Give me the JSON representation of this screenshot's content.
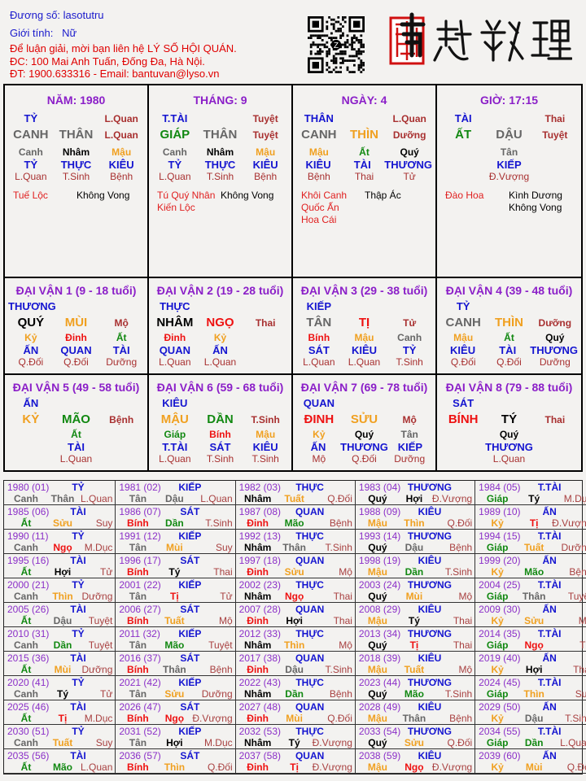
{
  "header": {
    "duong_so": "Đương số: lasotutru",
    "gioi_tinh": "Giới tính:   Nữ",
    "contact1": "Để luận giải, mời bạn liên hệ LÝ SỐ HỘI QUÁN.",
    "contact2": "ĐC: 100 Mai Anh Tuấn, Đống Đa, Hà Nội.",
    "contact3": "ĐT: 1900.633316 - Email: bantuvan@lyso.vn",
    "logo_text": "南越數理",
    "qr_icon": "qr-code"
  },
  "colors": {
    "Canh": "#666666",
    "Tân": "#666666",
    "Thân": "#666666",
    "Dậu": "#666666",
    "Giáp": "#118811",
    "Ất": "#118811",
    "Dần": "#118811",
    "Mão": "#118811",
    "Bính": "#ee1111",
    "Đinh": "#ee1111",
    "Tị": "#ee1111",
    "Ngọ": "#ee1111",
    "Mậu": "#f0a020",
    "Kỷ": "#f0a020",
    "Thìn": "#f0a020",
    "Tuất": "#f0a020",
    "Sửu": "#f0a020",
    "Mùi": "#f0a020",
    "Nhâm": "#000000",
    "Quý": "#000000",
    "Tý": "#000000",
    "Hợi": "#000000",
    "title": "#8b1fc8",
    "thap_than": "#1515d0",
    "truong_sinh": "#a83030",
    "than_sat": "#e02020"
  },
  "pillars": [
    {
      "title": "NĂM: 1980",
      "tt": "TỶ",
      "ts1": "L.Quan",
      "can": "CANH",
      "can_el": "Canh",
      "chi": "THÂN",
      "chi_el": "Thân",
      "ts2": "L.Quan",
      "hidden": [
        {
          "can": "Canh",
          "tt": "TỶ",
          "ts": "L.Quan"
        },
        {
          "can": "Nhâm",
          "tt": "THỰC",
          "ts": "T.Sinh"
        },
        {
          "can": "Mậu",
          "tt": "KIÊU",
          "ts": "Bệnh"
        }
      ],
      "stars_left": [
        "Tuế Lộc"
      ],
      "stars_right": [
        "Không Vong"
      ]
    },
    {
      "title": "THÁNG: 9",
      "tt": "T.TÀI",
      "ts1": "Tuyệt",
      "can": "GIÁP",
      "can_el": "Giáp",
      "chi": "THÂN",
      "chi_el": "Thân",
      "ts2": "Tuyệt",
      "hidden": [
        {
          "can": "Canh",
          "tt": "TỶ",
          "ts": "L.Quan"
        },
        {
          "can": "Nhâm",
          "tt": "THỰC",
          "ts": "T.Sinh"
        },
        {
          "can": "Mậu",
          "tt": "KIÊU",
          "ts": "Bệnh"
        }
      ],
      "stars_left": [
        "Tú Quý Nhân",
        "Kiến Lộc"
      ],
      "stars_right": [
        "Không Vong"
      ]
    },
    {
      "title": "NGÀY: 4",
      "tt": "THÂN",
      "ts1": "L.Quan",
      "can": "CANH",
      "can_el": "Canh",
      "chi": "THÌN",
      "chi_el": "Thìn",
      "ts2": "Dưỡng",
      "hidden": [
        {
          "can": "Mậu",
          "tt": "KIÊU",
          "ts": "Bệnh"
        },
        {
          "can": "Ất",
          "tt": "TÀI",
          "ts": "Thai"
        },
        {
          "can": "Quý",
          "tt": "THƯƠNG",
          "ts": "Tử"
        }
      ],
      "stars_left": [
        "Khôi Canh",
        "Quốc Ấn",
        "Hoa Cái"
      ],
      "stars_right": [
        "Thập Ác"
      ]
    },
    {
      "title": "GIỜ: 17:15",
      "tt": "TÀI",
      "ts1": "Thai",
      "can": "ẤT",
      "can_el": "Ất",
      "chi": "DẬU",
      "chi_el": "Dậu",
      "ts2": "Tuyệt",
      "hidden": [
        null,
        {
          "can": "Tân",
          "tt": "KIẾP",
          "ts": "Đ.Vượng"
        },
        null
      ],
      "stars_left": [
        "Đào Hoa"
      ],
      "stars_right": [
        "Kình Dương",
        "Không Vong"
      ]
    }
  ],
  "dai_van": [
    {
      "title": "ĐẠI VẬN 1 (9 - 18 tuổi)",
      "tt": "THƯƠNG",
      "can": "QUÝ",
      "can_el": "Quý",
      "chi": "MÙI",
      "chi_el": "Mùi",
      "ts": "Mộ",
      "hidden": [
        {
          "can": "Kỷ",
          "tt": "ẤN",
          "ts": "Q.Đối"
        },
        {
          "can": "Đinh",
          "tt": "QUAN",
          "ts": "Q.Đối"
        },
        {
          "can": "Ất",
          "tt": "TÀI",
          "ts": "Dưỡng"
        }
      ]
    },
    {
      "title": "ĐẠI VẬN 2 (19 - 28 tuổi)",
      "tt": "THỰC",
      "can": "NHÂM",
      "can_el": "Nhâm",
      "chi": "NGỌ",
      "chi_el": "Ngọ",
      "ts": "Thai",
      "hidden": [
        {
          "can": "Đinh",
          "tt": "QUAN",
          "ts": "L.Quan"
        },
        {
          "can": "Kỷ",
          "tt": "ẤN",
          "ts": "L.Quan"
        },
        null
      ]
    },
    {
      "title": "ĐẠI VẬN 3 (29 - 38 tuổi)",
      "tt": "KIẾP",
      "can": "TÂN",
      "can_el": "Tân",
      "chi": "TỊ",
      "chi_el": "Tị",
      "ts": "Tử",
      "hidden": [
        {
          "can": "Bính",
          "tt": "SÁT",
          "ts": "L.Quan"
        },
        {
          "can": "Mậu",
          "tt": "KIÊU",
          "ts": "L.Quan"
        },
        {
          "can": "Canh",
          "tt": "TỶ",
          "ts": "T.Sinh"
        }
      ]
    },
    {
      "title": "ĐẠI VẬN 4 (39 - 48 tuổi)",
      "tt": "TỶ",
      "can": "CANH",
      "can_el": "Canh",
      "chi": "THÌN",
      "chi_el": "Thìn",
      "ts": "Dưỡng",
      "hidden": [
        {
          "can": "Mậu",
          "tt": "KIÊU",
          "ts": "Q.Đối"
        },
        {
          "can": "Ất",
          "tt": "TÀI",
          "ts": "Q.Đối"
        },
        {
          "can": "Quý",
          "tt": "THƯƠNG",
          "ts": "Dưỡng"
        }
      ]
    },
    {
      "title": "ĐẠI VẬN 5 (49 - 58 tuổi)",
      "tt": "ẤN",
      "can": "KỶ",
      "can_el": "Kỷ",
      "chi": "MÃO",
      "chi_el": "Mão",
      "ts": "Bệnh",
      "hidden": [
        null,
        {
          "can": "Ất",
          "tt": "TÀI",
          "ts": "L.Quan"
        },
        null
      ]
    },
    {
      "title": "ĐẠI VẬN 6 (59 - 68 tuổi)",
      "tt": "KIÊU",
      "can": "MẬU",
      "can_el": "Mậu",
      "chi": "DẦN",
      "chi_el": "Dần",
      "ts": "T.Sinh",
      "hidden": [
        {
          "can": "Giáp",
          "tt": "T.TÀI",
          "ts": "L.Quan"
        },
        {
          "can": "Bính",
          "tt": "SÁT",
          "ts": "T.Sinh"
        },
        {
          "can": "Mậu",
          "tt": "KIÊU",
          "ts": "T.Sinh"
        }
      ]
    },
    {
      "title": "ĐẠI VẬN 7 (69 - 78 tuổi)",
      "tt": "QUAN",
      "can": "ĐINH",
      "can_el": "Đinh",
      "chi": "SỬU",
      "chi_el": "Sửu",
      "ts": "Mộ",
      "hidden": [
        {
          "can": "Kỷ",
          "tt": "ẤN",
          "ts": "Mộ"
        },
        {
          "can": "Quý",
          "tt": "THƯƠNG",
          "ts": "Q.Đối"
        },
        {
          "can": "Tân",
          "tt": "KIẾP",
          "ts": "Dưỡng"
        }
      ]
    },
    {
      "title": "ĐẠI VẬN 8 (79 - 88 tuổi)",
      "tt": "SÁT",
      "can": "BÍNH",
      "can_el": "Bính",
      "chi": "TÝ",
      "chi_el": "Tý",
      "ts": "Thai",
      "hidden": [
        null,
        {
          "can": "Quý",
          "tt": "THƯƠNG",
          "ts": "L.Quan"
        },
        null
      ]
    }
  ],
  "years": [
    [
      "1980 (01)",
      "TỶ",
      "Canh",
      "Thân",
      "L.Quan"
    ],
    [
      "1981 (02)",
      "KIẾP",
      "Tân",
      "Dậu",
      "L.Quan"
    ],
    [
      "1982 (03)",
      "THỰC",
      "Nhâm",
      "Tuất",
      "Q.Đối"
    ],
    [
      "1983 (04)",
      "THƯƠNG",
      "Quý",
      "Hợi",
      "Đ.Vượng"
    ],
    [
      "1984 (05)",
      "T.TÀI",
      "Giáp",
      "Tý",
      "M.Dục"
    ],
    [
      "1985 (06)",
      "TÀI",
      "Ất",
      "Sửu",
      "Suy"
    ],
    [
      "1986 (07)",
      "SÁT",
      "Bính",
      "Dần",
      "T.Sinh"
    ],
    [
      "1987 (08)",
      "QUAN",
      "Đinh",
      "Mão",
      "Bệnh"
    ],
    [
      "1988 (09)",
      "KIÊU",
      "Mậu",
      "Thìn",
      "Q.Đối"
    ],
    [
      "1989 (10)",
      "ẤN",
      "Kỷ",
      "Tị",
      "Đ.Vượng"
    ],
    [
      "1990 (11)",
      "TỶ",
      "Canh",
      "Ngọ",
      "M.Dục"
    ],
    [
      "1991 (12)",
      "KIẾP",
      "Tân",
      "Mùi",
      "Suy"
    ],
    [
      "1992 (13)",
      "THỰC",
      "Nhâm",
      "Thân",
      "T.Sinh"
    ],
    [
      "1993 (14)",
      "THƯƠNG",
      "Quý",
      "Dậu",
      "Bệnh"
    ],
    [
      "1994 (15)",
      "T.TÀI",
      "Giáp",
      "Tuất",
      "Dưỡng"
    ],
    [
      "1995 (16)",
      "TÀI",
      "Ất",
      "Hợi",
      "Tử"
    ],
    [
      "1996 (17)",
      "SÁT",
      "Bính",
      "Tý",
      "Thai"
    ],
    [
      "1997 (18)",
      "QUAN",
      "Đinh",
      "Sửu",
      "Mộ"
    ],
    [
      "1998 (19)",
      "KIÊU",
      "Mậu",
      "Dần",
      "T.Sinh"
    ],
    [
      "1999 (20)",
      "ẤN",
      "Kỷ",
      "Mão",
      "Bệnh"
    ],
    [
      "2000 (21)",
      "TỶ",
      "Canh",
      "Thìn",
      "Dưỡng"
    ],
    [
      "2001 (22)",
      "KIẾP",
      "Tân",
      "Tị",
      "Tử"
    ],
    [
      "2002 (23)",
      "THỰC",
      "Nhâm",
      "Ngọ",
      "Thai"
    ],
    [
      "2003 (24)",
      "THƯƠNG",
      "Quý",
      "Mùi",
      "Mộ"
    ],
    [
      "2004 (25)",
      "T.TÀI",
      "Giáp",
      "Thân",
      "Tuyệt"
    ],
    [
      "2005 (26)",
      "TÀI",
      "Ất",
      "Dậu",
      "Tuyệt"
    ],
    [
      "2006 (27)",
      "SÁT",
      "Bính",
      "Tuất",
      "Mộ"
    ],
    [
      "2007 (28)",
      "QUAN",
      "Đinh",
      "Hợi",
      "Thai"
    ],
    [
      "2008 (29)",
      "KIÊU",
      "Mậu",
      "Tý",
      "Thai"
    ],
    [
      "2009 (30)",
      "ẤN",
      "Kỷ",
      "Sửu",
      "Mộ"
    ],
    [
      "2010 (31)",
      "TỶ",
      "Canh",
      "Dần",
      "Tuyệt"
    ],
    [
      "2011 (32)",
      "KIẾP",
      "Tân",
      "Mão",
      "Tuyệt"
    ],
    [
      "2012 (33)",
      "THỰC",
      "Nhâm",
      "Thìn",
      "Mộ"
    ],
    [
      "2013 (34)",
      "THƯƠNG",
      "Quý",
      "Tị",
      "Thai"
    ],
    [
      "2014 (35)",
      "T.TÀI",
      "Giáp",
      "Ngọ",
      "Tử"
    ],
    [
      "2015 (36)",
      "TÀI",
      "Ất",
      "Mùi",
      "Dưỡng"
    ],
    [
      "2016 (37)",
      "SÁT",
      "Bính",
      "Thân",
      "Bệnh"
    ],
    [
      "2017 (38)",
      "QUAN",
      "Đinh",
      "Dậu",
      "T.Sinh"
    ],
    [
      "2018 (39)",
      "KIÊU",
      "Mậu",
      "Tuất",
      "Mộ"
    ],
    [
      "2019 (40)",
      "ẤN",
      "Kỷ",
      "Hợi",
      "Thai"
    ],
    [
      "2020 (41)",
      "TỶ",
      "Canh",
      "Tý",
      "Tử"
    ],
    [
      "2021 (42)",
      "KIẾP",
      "Tân",
      "Sửu",
      "Dưỡng"
    ],
    [
      "2022 (43)",
      "THỰC",
      "Nhâm",
      "Dần",
      "Bệnh"
    ],
    [
      "2023 (44)",
      "THƯƠNG",
      "Quý",
      "Mão",
      "T.Sinh"
    ],
    [
      "2024 (45)",
      "T.TÀI",
      "Giáp",
      "Thìn",
      "Suy"
    ],
    [
      "2025 (46)",
      "TÀI",
      "Ất",
      "Tị",
      "M.Dục"
    ],
    [
      "2026 (47)",
      "SÁT",
      "Bính",
      "Ngọ",
      "Đ.Vượng"
    ],
    [
      "2027 (48)",
      "QUAN",
      "Đinh",
      "Mùi",
      "Q.Đối"
    ],
    [
      "2028 (49)",
      "KIÊU",
      "Mậu",
      "Thân",
      "Bệnh"
    ],
    [
      "2029 (50)",
      "ẤN",
      "Kỷ",
      "Dậu",
      "T.Sinh"
    ],
    [
      "2030 (51)",
      "TỶ",
      "Canh",
      "Tuất",
      "Suy"
    ],
    [
      "2031 (52)",
      "KIẾP",
      "Tân",
      "Hợi",
      "M.Dục"
    ],
    [
      "2032 (53)",
      "THỰC",
      "Nhâm",
      "Tý",
      "Đ.Vượng"
    ],
    [
      "2033 (54)",
      "THƯƠNG",
      "Quý",
      "Sửu",
      "Q.Đối"
    ],
    [
      "2034 (55)",
      "T.TÀI",
      "Giáp",
      "Dần",
      "L.Quan"
    ],
    [
      "2035 (56)",
      "TÀI",
      "Ất",
      "Mão",
      "L.Quan"
    ],
    [
      "2036 (57)",
      "SÁT",
      "Bính",
      "Thìn",
      "Q.Đối"
    ],
    [
      "2037 (58)",
      "QUAN",
      "Đinh",
      "Tị",
      "Đ.Vượng"
    ],
    [
      "2038 (59)",
      "KIÊU",
      "Mậu",
      "Ngọ",
      "Đ.Vượng"
    ],
    [
      "2039 (60)",
      "ẤN",
      "Kỷ",
      "Mùi",
      "Q.Đối"
    ]
  ]
}
